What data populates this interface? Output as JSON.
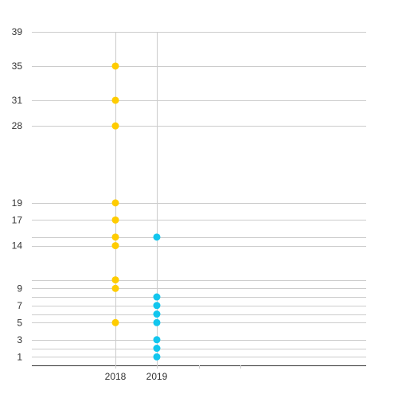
{
  "chart_data": {
    "type": "scatter",
    "x_categories": [
      "2018",
      "2019"
    ],
    "y_ticks": [
      1,
      3,
      5,
      7,
      9,
      14,
      17,
      19,
      28,
      31,
      35,
      39
    ],
    "ylim": [
      0,
      39
    ],
    "grid": true,
    "legend": "none",
    "series": [
      {
        "color": "#FFCC00",
        "points": [
          {
            "x": "2018",
            "y": 35
          },
          {
            "x": "2018",
            "y": 31
          },
          {
            "x": "2018",
            "y": 28
          },
          {
            "x": "2018",
            "y": 19
          },
          {
            "x": "2018",
            "y": 17
          },
          {
            "x": "2018",
            "y": 15
          },
          {
            "x": "2018",
            "y": 14
          },
          {
            "x": "2018",
            "y": 10
          },
          {
            "x": "2018",
            "y": 9
          },
          {
            "x": "2018",
            "y": 5
          }
        ]
      },
      {
        "color": "#12C6EE",
        "points": [
          {
            "x": "2019",
            "y": 15
          },
          {
            "x": "2019",
            "y": 8
          },
          {
            "x": "2019",
            "y": 7
          },
          {
            "x": "2019",
            "y": 6
          },
          {
            "x": "2019",
            "y": 5
          },
          {
            "x": "2019",
            "y": 3
          },
          {
            "x": "2019",
            "y": 2
          },
          {
            "x": "2019",
            "y": 1
          }
        ]
      }
    ],
    "colors": {
      "grid": "#cccccc",
      "axis": "#333333",
      "tick_label": "#333333"
    }
  }
}
